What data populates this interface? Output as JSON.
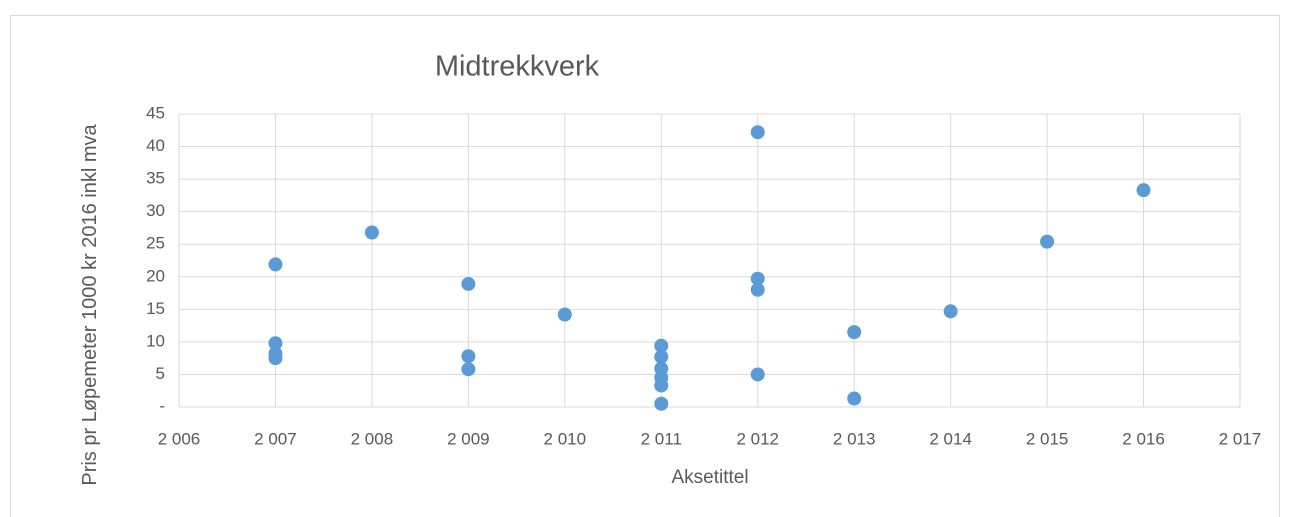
{
  "chart_data": {
    "type": "scatter",
    "title": "Midtrekkverk",
    "x_label": "Aksetittel",
    "y_label": "Pris pr Løpemeter 1000 kr 2016 inkl mva",
    "color": "#5b9bd5",
    "grid": true,
    "x": [
      2007,
      2007,
      2007,
      2007,
      2008,
      2009,
      2009,
      2009,
      2010,
      2011,
      2011,
      2011,
      2011,
      2011,
      2011,
      2012,
      2012,
      2012,
      2012,
      2013,
      2013,
      2014,
      2015,
      2016
    ],
    "values": [
      21.9,
      9.8,
      8.2,
      7.5,
      26.8,
      18.9,
      7.8,
      5.8,
      14.2,
      9.4,
      7.7,
      5.9,
      4.5,
      3.3,
      0.5,
      42.2,
      19.7,
      18.0,
      5.0,
      11.5,
      1.3,
      14.7,
      25.4,
      33.3
    ],
    "xlim": [
      2006,
      2017
    ],
    "xticks": [
      {
        "value": 2006,
        "label": "2 006"
      },
      {
        "value": 2007,
        "label": "2 007"
      },
      {
        "value": 2008,
        "label": "2 008"
      },
      {
        "value": 2009,
        "label": "2 009"
      },
      {
        "value": 2010,
        "label": "2 010"
      },
      {
        "value": 2011,
        "label": "2 011"
      },
      {
        "value": 2012,
        "label": "2 012"
      },
      {
        "value": 2013,
        "label": "2 013"
      },
      {
        "value": 2014,
        "label": "2 014"
      },
      {
        "value": 2015,
        "label": "2 015"
      },
      {
        "value": 2016,
        "label": "2 016"
      },
      {
        "value": 2017,
        "label": "2 017"
      }
    ],
    "ylim": [
      0,
      45
    ],
    "yticks": [
      {
        "value": 0,
        "label": "-"
      },
      5,
      10,
      15,
      20,
      25,
      30,
      35,
      40,
      45
    ]
  }
}
